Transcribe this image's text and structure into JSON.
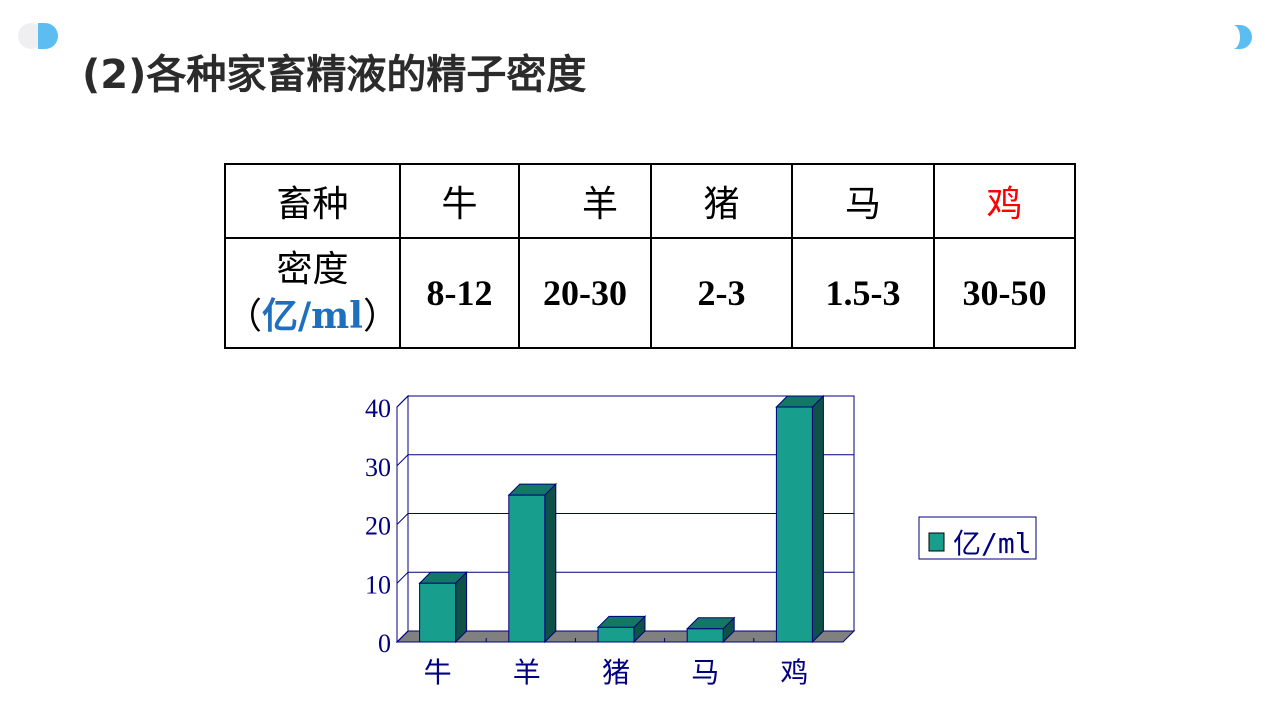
{
  "title": "(2)各种家畜精液的精子密度",
  "table": {
    "header": [
      "畜种",
      "牛",
      "羊",
      "猪",
      "马",
      "鸡"
    ],
    "row_label": "密度",
    "row_unit_open": "（",
    "row_unit": "亿/ml",
    "row_unit_close": "）",
    "values": [
      "8-12",
      "20-30",
      "2-3",
      "1.5-3",
      "30-50"
    ],
    "highlight_color": "#ff0000"
  },
  "chart_data": {
    "type": "bar",
    "style": "3d-column",
    "categories": [
      "牛",
      "羊",
      "猪",
      "马",
      "鸡"
    ],
    "series": [
      {
        "name": "亿/ml",
        "values": [
          10,
          25,
          2.5,
          2.25,
          40
        ]
      }
    ],
    "yticks": [
      "0",
      "10",
      "20",
      "30",
      "40"
    ],
    "ylim": [
      0,
      40
    ],
    "grid": true,
    "legend": "right",
    "bar_color": "#179e8c",
    "axis_color": "#000080"
  }
}
